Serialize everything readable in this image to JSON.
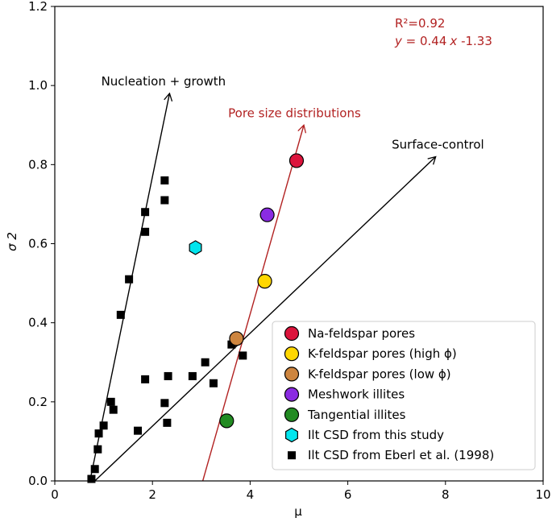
{
  "chart_data": {
    "type": "scatter",
    "xlabel": "μ",
    "ylabel": "σ 2",
    "xlim": [
      0,
      10
    ],
    "ylim": [
      0,
      1.2
    ],
    "x_ticks": [
      "0",
      "2",
      "4",
      "6",
      "8",
      "10"
    ],
    "y_ticks": [
      "0.0",
      "0.2",
      "0.4",
      "0.6",
      "0.8",
      "1.0",
      "1.2"
    ],
    "x_tick_values": [
      0,
      2,
      4,
      6,
      8,
      10
    ],
    "y_tick_values": [
      0,
      0.2,
      0.4,
      0.6,
      0.8,
      1.0,
      1.2
    ],
    "grid": false,
    "legend_position": "bottom-right",
    "regression": {
      "r2_text": "R²=0.92",
      "eq_y": "y",
      "eq_mid": " = 0.44",
      "eq_x": "x",
      "eq_tail": " -1.33",
      "color": "#b22222"
    },
    "arrows": [
      {
        "name": "nucleation-growth-arrow",
        "label": "Nucleation + growth",
        "color": "#000000",
        "from": [
          0.72,
          0.0
        ],
        "to": [
          2.35,
          0.98
        ],
        "label_pos": [
          0.95,
          1.0
        ]
      },
      {
        "name": "surface-control-arrow",
        "label": "Surface-control",
        "color": "#000000",
        "from": [
          0.82,
          0.0
        ],
        "to": [
          7.8,
          0.82
        ],
        "label_pos": [
          6.9,
          0.84
        ]
      },
      {
        "name": "pore-size-arrow",
        "label": "Pore size distributions",
        "color": "#b22222",
        "from": [
          3.03,
          0.0
        ],
        "to": [
          5.1,
          0.9
        ],
        "label_pos": [
          3.55,
          0.92
        ]
      }
    ],
    "series": [
      {
        "name": "Na-feldspar pores",
        "marker": "circle",
        "color": "#dc143c",
        "points": [
          [
            4.95,
            0.81
          ]
        ]
      },
      {
        "name": "K-feldspar pores (high ϕ)",
        "marker": "circle",
        "color": "#ffd700",
        "points": [
          [
            4.3,
            0.505
          ]
        ]
      },
      {
        "name": "K-feldspar pores (low ϕ)",
        "marker": "circle",
        "color": "#cd853f",
        "points": [
          [
            3.72,
            0.36
          ]
        ]
      },
      {
        "name": "Meshwork illites",
        "marker": "circle",
        "color": "#8a2be2",
        "points": [
          [
            4.35,
            0.673
          ]
        ]
      },
      {
        "name": "Tangential illites",
        "marker": "circle",
        "color": "#228b22",
        "points": [
          [
            3.52,
            0.152
          ]
        ]
      },
      {
        "name": "Ilt CSD from this study",
        "marker": "hexagon",
        "color": "#00e5ee",
        "points": [
          [
            2.88,
            0.59
          ]
        ]
      },
      {
        "name": "Ilt CSD from Eberl et al. (1998)",
        "marker": "square",
        "color": "#000000",
        "points": [
          [
            0.75,
            0.005
          ],
          [
            0.82,
            0.03
          ],
          [
            0.88,
            0.08
          ],
          [
            0.9,
            0.12
          ],
          [
            1.0,
            0.14
          ],
          [
            1.15,
            0.2
          ],
          [
            1.2,
            0.18
          ],
          [
            1.35,
            0.42
          ],
          [
            1.52,
            0.51
          ],
          [
            1.85,
            0.63
          ],
          [
            1.85,
            0.68
          ],
          [
            2.25,
            0.71
          ],
          [
            2.25,
            0.76
          ],
          [
            1.85,
            0.257
          ],
          [
            1.7,
            0.127
          ],
          [
            2.25,
            0.197
          ],
          [
            2.32,
            0.265
          ],
          [
            2.3,
            0.147
          ],
          [
            2.82,
            0.265
          ],
          [
            3.08,
            0.3
          ],
          [
            3.25,
            0.247
          ],
          [
            3.62,
            0.345
          ],
          [
            3.85,
            0.317
          ]
        ]
      }
    ]
  }
}
